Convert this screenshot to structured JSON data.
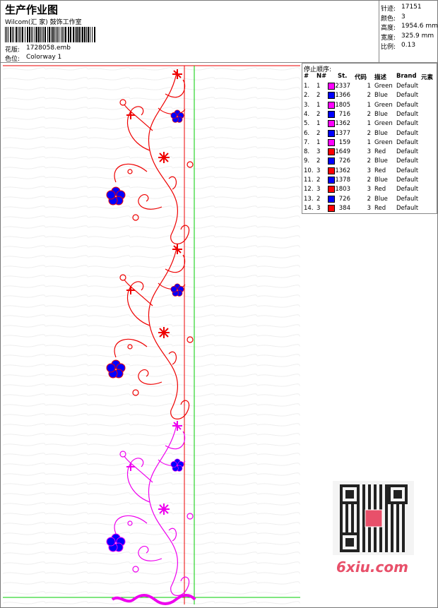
{
  "header": {
    "title": "生产作业图",
    "studio": "Wilcom(汇 家) 鼓饰工作室",
    "design_label": "花版:",
    "design": "1728058.emb",
    "colorway_label": "色位:",
    "colorway": "Colorway 1"
  },
  "info": [
    {
      "label": "针迹:",
      "value": "17151"
    },
    {
      "label": "颜色:",
      "value": "3"
    },
    {
      "label": "高度:",
      "value": "1954.6 mm"
    },
    {
      "label": "宽度:",
      "value": "325.9 mm"
    },
    {
      "label": "比例:",
      "value": "0.13"
    }
  ],
  "stop_sequence": {
    "title": "停止顺序:",
    "columns": [
      "#",
      "N#",
      "St.",
      "代码",
      "描述",
      "Brand",
      "元素"
    ],
    "rows": [
      {
        "no": "1.",
        "n": 1,
        "color": "#ff00ff",
        "stitches": 2337,
        "code": 1,
        "desc": "Green",
        "brand": "Default"
      },
      {
        "no": "2.",
        "n": 2,
        "color": "#0000ff",
        "stitches": 1366,
        "code": 2,
        "desc": "Blue",
        "brand": "Default"
      },
      {
        "no": "3.",
        "n": 1,
        "color": "#ff00ff",
        "stitches": 1805,
        "code": 1,
        "desc": "Green",
        "brand": "Default"
      },
      {
        "no": "4.",
        "n": 2,
        "color": "#0000ff",
        "stitches": 716,
        "code": 2,
        "desc": "Blue",
        "brand": "Default"
      },
      {
        "no": "5.",
        "n": 1,
        "color": "#ff00ff",
        "stitches": 1362,
        "code": 1,
        "desc": "Green",
        "brand": "Default"
      },
      {
        "no": "6.",
        "n": 2,
        "color": "#0000ff",
        "stitches": 1377,
        "code": 2,
        "desc": "Blue",
        "brand": "Default"
      },
      {
        "no": "7.",
        "n": 1,
        "color": "#ff00ff",
        "stitches": 159,
        "code": 1,
        "desc": "Green",
        "brand": "Default"
      },
      {
        "no": "8.",
        "n": 3,
        "color": "#ff0000",
        "stitches": 1649,
        "code": 3,
        "desc": "Red",
        "brand": "Default"
      },
      {
        "no": "9.",
        "n": 2,
        "color": "#0000ff",
        "stitches": 726,
        "code": 2,
        "desc": "Blue",
        "brand": "Default"
      },
      {
        "no": "10.",
        "n": 3,
        "color": "#ff0000",
        "stitches": 1362,
        "code": 3,
        "desc": "Red",
        "brand": "Default"
      },
      {
        "no": "11.",
        "n": 2,
        "color": "#0000ff",
        "stitches": 1378,
        "code": 2,
        "desc": "Blue",
        "brand": "Default"
      },
      {
        "no": "12.",
        "n": 3,
        "color": "#ff0000",
        "stitches": 1803,
        "code": 3,
        "desc": "Red",
        "brand": "Default"
      },
      {
        "no": "13.",
        "n": 2,
        "color": "#0000ff",
        "stitches": 726,
        "code": 2,
        "desc": "Blue",
        "brand": "Default"
      },
      {
        "no": "14.",
        "n": 3,
        "color": "#ff0000",
        "stitches": 384,
        "code": 3,
        "desc": "Red",
        "brand": "Default"
      }
    ]
  },
  "watermark": "6xiu.com"
}
